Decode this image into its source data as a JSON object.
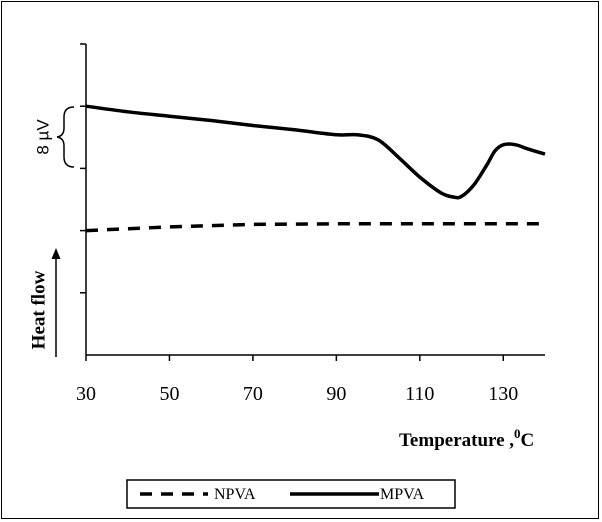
{
  "chart_data": {
    "type": "line",
    "xlabel": "Temperature ,",
    "xlabel_unit_sup": "0",
    "xlabel_unit": "C",
    "ylabel": "Heat flow",
    "xlim": [
      30,
      140
    ],
    "x_ticks": [
      30,
      50,
      70,
      90,
      110,
      130
    ],
    "y_tick_count": 5,
    "scale_bar_label": "8 µV",
    "grid": false,
    "legend_position": "bottom",
    "series": [
      {
        "name": "MPVA",
        "style": "solid",
        "color": "#000000",
        "points": [
          [
            30,
            4.0
          ],
          [
            40,
            3.91
          ],
          [
            50,
            3.84
          ],
          [
            60,
            3.77
          ],
          [
            70,
            3.69
          ],
          [
            80,
            3.62
          ],
          [
            90,
            3.54
          ],
          [
            95,
            3.54
          ],
          [
            100,
            3.46
          ],
          [
            105,
            3.17
          ],
          [
            110,
            2.86
          ],
          [
            115,
            2.61
          ],
          [
            118,
            2.54
          ],
          [
            120,
            2.55
          ],
          [
            123,
            2.74
          ],
          [
            126,
            3.05
          ],
          [
            128,
            3.28
          ],
          [
            130,
            3.38
          ],
          [
            133,
            3.38
          ],
          [
            136,
            3.31
          ],
          [
            140,
            3.23
          ]
        ]
      },
      {
        "name": "NPVA",
        "style": "dashed",
        "color": "#000000",
        "points": [
          [
            30,
            2.0
          ],
          [
            50,
            2.06
          ],
          [
            70,
            2.1
          ],
          [
            90,
            2.11
          ],
          [
            110,
            2.11
          ],
          [
            130,
            2.11
          ],
          [
            140,
            2.11
          ]
        ]
      }
    ]
  }
}
